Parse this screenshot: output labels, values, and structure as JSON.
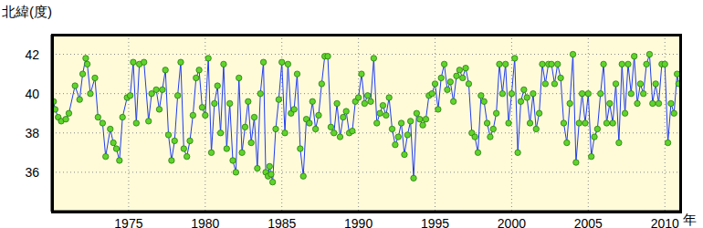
{
  "chart_data": {
    "type": "line",
    "y_label": "北緯(度)",
    "x_label": "年",
    "grid": true,
    "xlim": [
      1970,
      2011
    ],
    "xticks": [
      1975,
      1980,
      1985,
      1990,
      1995,
      2000,
      2005,
      2010
    ],
    "ylim": [
      34,
      43
    ],
    "yticks": [
      36,
      38,
      40,
      42
    ],
    "color": "#1f3cf0",
    "marker": "circle",
    "line_style": "solid",
    "x": [
      1970.1,
      1970.2,
      1970.4,
      1970.6,
      1970.9,
      1971.1,
      1971.5,
      1971.8,
      1972.0,
      1972.2,
      1972.3,
      1972.5,
      1972.8,
      1973.0,
      1973.3,
      1973.5,
      1973.8,
      1974.0,
      1974.2,
      1974.4,
      1974.6,
      1974.9,
      1975.1,
      1975.3,
      1975.5,
      1975.7,
      1976.0,
      1976.3,
      1976.5,
      1976.8,
      1977.0,
      1977.2,
      1977.4,
      1977.6,
      1977.8,
      1978.0,
      1978.2,
      1978.4,
      1978.6,
      1978.8,
      1979.0,
      1979.2,
      1979.4,
      1979.6,
      1979.8,
      1980.0,
      1980.2,
      1980.4,
      1980.6,
      1980.8,
      1981.0,
      1981.2,
      1981.4,
      1981.6,
      1981.8,
      1982.0,
      1982.2,
      1982.4,
      1982.6,
      1982.8,
      1983.0,
      1983.2,
      1983.4,
      1983.6,
      1983.8,
      1983.95,
      1984.1,
      1984.2,
      1984.3,
      1984.4,
      1984.6,
      1984.8,
      1985.0,
      1985.2,
      1985.4,
      1985.6,
      1985.8,
      1986.0,
      1986.2,
      1986.4,
      1986.6,
      1986.8,
      1987.0,
      1987.2,
      1987.4,
      1987.6,
      1987.8,
      1988.0,
      1988.2,
      1988.4,
      1988.6,
      1988.8,
      1989.0,
      1989.2,
      1989.4,
      1989.6,
      1989.8,
      1990.0,
      1990.2,
      1990.4,
      1990.6,
      1990.8,
      1991.0,
      1991.2,
      1991.4,
      1991.6,
      1991.8,
      1992.0,
      1992.2,
      1992.4,
      1992.6,
      1992.8,
      1993.0,
      1993.2,
      1993.4,
      1993.6,
      1993.8,
      1994.0,
      1994.2,
      1994.4,
      1994.6,
      1994.8,
      1995.0,
      1995.2,
      1995.4,
      1995.6,
      1995.8,
      1996.0,
      1996.2,
      1996.4,
      1996.6,
      1996.8,
      1997.0,
      1997.2,
      1997.4,
      1997.6,
      1997.8,
      1998.0,
      1998.2,
      1998.4,
      1998.6,
      1998.8,
      1999.0,
      1999.2,
      1999.4,
      1999.6,
      1999.8,
      2000.0,
      2000.2,
      2000.4,
      2000.6,
      2000.8,
      2001.0,
      2001.2,
      2001.4,
      2001.6,
      2001.8,
      2002.0,
      2002.2,
      2002.4,
      2002.6,
      2002.8,
      2003.0,
      2003.2,
      2003.4,
      2003.6,
      2003.8,
      2004.0,
      2004.2,
      2004.4,
      2004.6,
      2004.8,
      2005.0,
      2005.2,
      2005.4,
      2005.6,
      2005.8,
      2006.0,
      2006.2,
      2006.4,
      2006.6,
      2006.8,
      2007.0,
      2007.2,
      2007.4,
      2007.6,
      2007.8,
      2008.0,
      2008.2,
      2008.4,
      2008.6,
      2008.8,
      2009.0,
      2009.2,
      2009.4,
      2009.6,
      2009.8,
      2010.0,
      2010.2,
      2010.4,
      2010.6,
      2010.8,
      2010.9
    ],
    "values": [
      39.6,
      39.2,
      38.8,
      38.6,
      38.7,
      39.0,
      40.4,
      39.7,
      41.0,
      41.8,
      41.5,
      40.0,
      40.8,
      38.8,
      38.5,
      36.8,
      38.2,
      37.5,
      37.2,
      36.6,
      38.8,
      39.8,
      39.9,
      41.6,
      38.5,
      41.5,
      41.6,
      38.6,
      40.0,
      40.2,
      39.2,
      40.2,
      41.2,
      37.9,
      36.6,
      37.6,
      39.9,
      41.6,
      37.2,
      36.8,
      37.6,
      38.9,
      40.8,
      41.2,
      39.3,
      38.9,
      41.8,
      37.0,
      39.5,
      40.4,
      38.0,
      41.5,
      37.2,
      39.5,
      36.6,
      36.0,
      40.8,
      37.0,
      38.3,
      39.6,
      37.5,
      38.8,
      36.2,
      40.0,
      41.6,
      36.0,
      35.8,
      36.3,
      35.9,
      35.5,
      38.2,
      39.7,
      41.6,
      38.0,
      41.5,
      39.0,
      39.2,
      41.0,
      37.2,
      35.8,
      38.7,
      38.5,
      39.6,
      38.2,
      38.9,
      40.5,
      41.9,
      41.9,
      38.3,
      38.0,
      39.5,
      37.8,
      38.8,
      39.1,
      38.0,
      38.1,
      39.6,
      39.8,
      41.0,
      39.5,
      39.9,
      39.6,
      41.8,
      38.5,
      39.0,
      39.4,
      38.9,
      39.8,
      38.2,
      37.4,
      37.8,
      38.5,
      36.9,
      37.9,
      38.6,
      35.7,
      39.0,
      38.7,
      38.4,
      38.7,
      39.9,
      40.0,
      40.5,
      39.2,
      40.8,
      41.5,
      40.2,
      40.6,
      39.6,
      40.9,
      41.2,
      40.8,
      41.3,
      40.5,
      38.0,
      37.8,
      37.0,
      39.9,
      39.6,
      38.5,
      37.8,
      38.2,
      39.0,
      41.5,
      40.0,
      41.5,
      38.5,
      40.0,
      41.8,
      37.0,
      39.6,
      40.2,
      39.8,
      38.5,
      40.0,
      38.2,
      39.0,
      41.5,
      40.5,
      41.5,
      41.5,
      40.5,
      41.5,
      40.8,
      38.5,
      37.5,
      39.5,
      42.0,
      36.5,
      38.5,
      40.0,
      38.5,
      40.0,
      36.8,
      37.8,
      38.2,
      40.0,
      41.5,
      38.5,
      39.5,
      38.5,
      40.5,
      37.5,
      41.5,
      39.0,
      41.5,
      40.0,
      41.9,
      39.5,
      40.5,
      40.0,
      41.5,
      42.0,
      39.5,
      40.5,
      39.5,
      41.5,
      41.5,
      37.5,
      39.5,
      39.0,
      41.0,
      40.5
    ]
  }
}
